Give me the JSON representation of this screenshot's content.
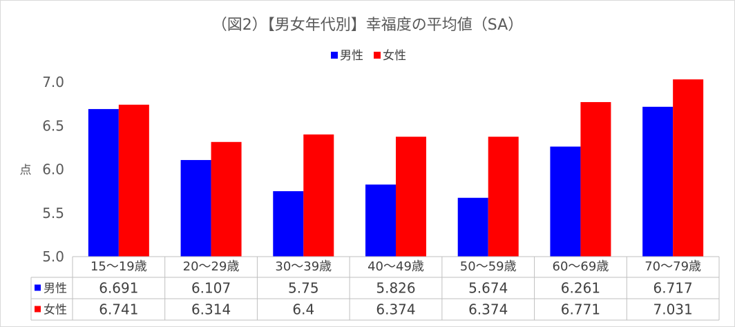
{
  "chart_data": {
    "type": "bar",
    "title": "（図2）【男女年代別】幸福度の平均値（SA）",
    "ylabel": "点",
    "ylim": [
      5.0,
      7.0
    ],
    "yticks": [
      "5.0",
      "5.5",
      "6.0",
      "6.5",
      "7.0"
    ],
    "categories": [
      "15～19歳",
      "20～29歳",
      "30～39歳",
      "40～49歳",
      "50～59歳",
      "60～69歳",
      "70～79歳"
    ],
    "series": [
      {
        "name": "男性",
        "color": "#0000ff",
        "values": [
          6.691,
          6.107,
          5.75,
          5.826,
          5.674,
          6.261,
          6.717
        ],
        "labels": [
          "6.691",
          "6.107",
          "5.75",
          "5.826",
          "5.674",
          "6.261",
          "6.717"
        ]
      },
      {
        "name": "女性",
        "color": "#ff0000",
        "values": [
          6.741,
          6.314,
          6.4,
          6.374,
          6.374,
          6.771,
          7.031
        ],
        "labels": [
          "6.741",
          "6.314",
          "6.4",
          "6.374",
          "6.374",
          "6.771",
          "7.031"
        ]
      }
    ],
    "legend_position": "top",
    "grid": false,
    "data_table": true
  }
}
